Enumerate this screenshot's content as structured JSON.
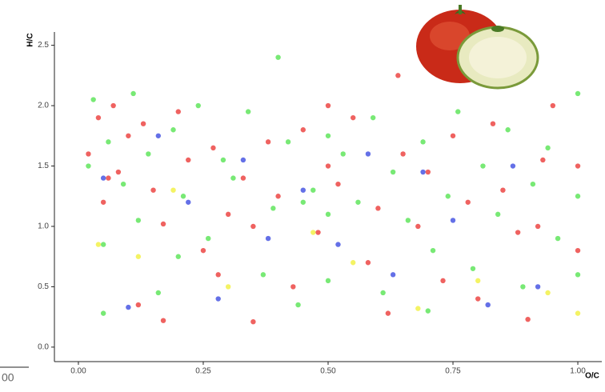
{
  "chart_data": {
    "type": "scatter",
    "x_label": "O/C",
    "y_label": "H/C",
    "annotations": [
      "00"
    ],
    "xlim": [
      -0.048,
      1.048
    ],
    "ylim": [
      -0.12,
      2.61
    ],
    "xticks": [
      {
        "value": 0,
        "label": "0.00"
      },
      {
        "value": 0.25,
        "label": "0.25"
      },
      {
        "value": 0.5,
        "label": "0.50"
      },
      {
        "value": 0.75,
        "label": "0.75"
      },
      {
        "value": 1,
        "label": "1.00"
      }
    ],
    "yticks": [
      {
        "value": 0,
        "label": "0.0"
      },
      {
        "value": 0.5,
        "label": "0.5"
      },
      {
        "value": 1,
        "label": "1.0"
      },
      {
        "value": 1.5,
        "label": "1.5"
      },
      {
        "value": 2,
        "label": "2.0"
      },
      {
        "value": 2.5,
        "label": "2.5"
      }
    ],
    "grid": false,
    "alpha": 0.7,
    "series": [
      {
        "color": "#e8201c",
        "x": [
          0.02,
          0.04,
          0.05,
          0.07,
          0.08,
          0.1,
          0.12,
          0.13,
          0.15,
          0.17,
          0.2,
          0.22,
          0.25,
          0.27,
          0.3,
          0.33,
          0.35,
          0.38,
          0.4,
          0.43,
          0.45,
          0.48,
          0.5,
          0.5,
          0.52,
          0.55,
          0.58,
          0.6,
          0.62,
          0.65,
          0.68,
          0.7,
          0.73,
          0.75,
          0.78,
          0.8,
          0.83,
          0.85,
          0.88,
          0.9,
          0.93,
          0.95,
          1.0,
          1.0,
          0.17,
          0.35,
          0.64,
          0.92,
          0.06,
          0.28
        ],
        "values": [
          1.6,
          1.9,
          1.2,
          2.0,
          1.45,
          1.75,
          0.35,
          1.85,
          1.3,
          0.22,
          1.95,
          1.55,
          0.8,
          1.65,
          1.1,
          1.4,
          0.21,
          1.7,
          1.25,
          0.5,
          1.8,
          0.95,
          1.5,
          2.0,
          1.35,
          1.9,
          0.7,
          1.15,
          0.28,
          1.6,
          1.0,
          1.45,
          0.55,
          1.75,
          1.2,
          0.4,
          1.85,
          1.3,
          0.95,
          0.23,
          1.55,
          2.0,
          1.5,
          0.8,
          1.02,
          1.0,
          2.25,
          1.0,
          1.4,
          0.6
        ]
      },
      {
        "color": "#3ee03a",
        "x": [
          0.02,
          0.03,
          0.05,
          0.06,
          0.09,
          0.11,
          0.14,
          0.16,
          0.19,
          0.21,
          0.24,
          0.26,
          0.29,
          0.31,
          0.34,
          0.37,
          0.39,
          0.4,
          0.42,
          0.44,
          0.47,
          0.5,
          0.5,
          0.5,
          0.53,
          0.56,
          0.59,
          0.61,
          0.63,
          0.66,
          0.69,
          0.71,
          0.74,
          0.76,
          0.79,
          0.81,
          0.84,
          0.86,
          0.89,
          0.91,
          0.94,
          0.96,
          1.0,
          1.0,
          1.0,
          0.05,
          0.2,
          0.45,
          0.7,
          0.12
        ],
        "values": [
          1.5,
          2.05,
          0.28,
          1.7,
          1.35,
          2.1,
          1.6,
          0.45,
          1.8,
          1.25,
          2.0,
          0.9,
          1.55,
          1.4,
          1.95,
          0.6,
          1.15,
          2.4,
          1.7,
          0.35,
          1.3,
          1.1,
          1.75,
          0.55,
          1.6,
          1.2,
          1.9,
          0.45,
          1.45,
          1.05,
          1.7,
          0.8,
          1.25,
          1.95,
          0.65,
          1.5,
          1.1,
          1.8,
          0.5,
          1.35,
          1.65,
          0.9,
          2.1,
          1.25,
          0.6,
          0.85,
          0.75,
          1.2,
          0.3,
          1.05
        ]
      },
      {
        "color": "#2233dd",
        "x": [
          0.05,
          0.1,
          0.16,
          0.22,
          0.28,
          0.33,
          0.38,
          0.45,
          0.52,
          0.58,
          0.63,
          0.69,
          0.75,
          0.82,
          0.87,
          0.92
        ],
        "values": [
          1.4,
          0.33,
          1.75,
          1.2,
          0.4,
          1.55,
          0.9,
          1.3,
          0.85,
          1.6,
          0.6,
          1.45,
          1.05,
          0.35,
          1.5,
          0.5
        ]
      },
      {
        "color": "#f0ee22",
        "x": [
          0.04,
          0.12,
          0.19,
          0.3,
          0.47,
          0.55,
          0.68,
          0.8,
          0.94,
          1.0
        ],
        "values": [
          0.85,
          0.75,
          1.3,
          0.5,
          0.95,
          0.7,
          0.32,
          0.55,
          0.45,
          0.28
        ]
      }
    ]
  }
}
